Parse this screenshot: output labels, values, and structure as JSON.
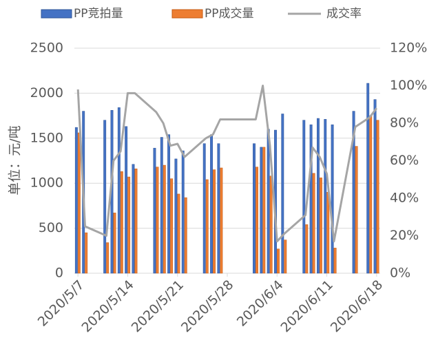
{
  "chart_data": {
    "type": "bar-line",
    "y_axis_label": "单位：元/吨",
    "x": [
      "2020/5/7",
      "2020/5/8",
      "2020/5/11",
      "2020/5/12",
      "2020/5/13",
      "2020/5/14",
      "2020/5/15",
      "2020/5/18",
      "2020/5/19",
      "2020/5/20",
      "2020/5/21",
      "2020/5/22",
      "2020/5/25",
      "2020/5/26",
      "2020/5/27",
      "2020/6/1",
      "2020/6/2",
      "2020/6/3",
      "2020/6/4",
      "2020/6/5",
      "2020/6/8",
      "2020/6/9",
      "2020/6/10",
      "2020/6/11",
      "2020/6/12",
      "2020/6/15",
      "2020/6/17",
      "2020/6/18"
    ],
    "series": [
      {
        "name": "PP竞拍量",
        "type": "bar",
        "color": "#4472c4",
        "values": [
          1620,
          1800,
          1700,
          1810,
          1840,
          1630,
          1210,
          1390,
          1510,
          1540,
          1270,
          1360,
          1440,
          1540,
          1440,
          1440,
          1400,
          1600,
          1590,
          1770,
          1700,
          1650,
          1720,
          1710,
          1650,
          1800,
          2110,
          1930
        ]
      },
      {
        "name": "PP成交量",
        "type": "bar",
        "color": "#ed7d31",
        "values": [
          1560,
          450,
          340,
          670,
          1130,
          1070,
          1160,
          1180,
          1200,
          1050,
          880,
          840,
          1040,
          1150,
          1170,
          1180,
          1400,
          1080,
          270,
          370,
          540,
          1110,
          1060,
          900,
          280,
          1410,
          1750,
          1700
        ]
      },
      {
        "name": "成交率",
        "type": "line",
        "axis": "y2",
        "color": "#a5a5a5",
        "values": [
          98,
          25,
          20,
          60,
          65,
          96,
          96,
          86,
          80,
          68,
          69,
          62,
          72,
          74,
          82,
          82,
          100,
          68,
          17,
          21,
          31,
          67,
          62,
          53,
          17,
          78,
          83,
          88
        ]
      }
    ],
    "xticks": [
      "2020/5/7",
      "2020/5/14",
      "2020/5/21",
      "2020/5/28",
      "2020/6/4",
      "2020/6/11",
      "2020/6/18"
    ],
    "ylim": [
      0,
      2500
    ],
    "yticks": [
      0,
      500,
      1000,
      1500,
      2000,
      2500
    ],
    "y2lim": [
      0,
      120
    ],
    "y2ticks": [
      {
        "value": 0,
        "label": "0%"
      },
      {
        "value": 20,
        "label": "20%"
      },
      {
        "value": 40,
        "label": "40%"
      },
      {
        "value": 60,
        "label": "60%"
      },
      {
        "value": 80,
        "label": "80%"
      },
      {
        "value": 100,
        "label": "100%"
      },
      {
        "value": 120,
        "label": "120%"
      }
    ],
    "grid": true,
    "legend": "top"
  }
}
